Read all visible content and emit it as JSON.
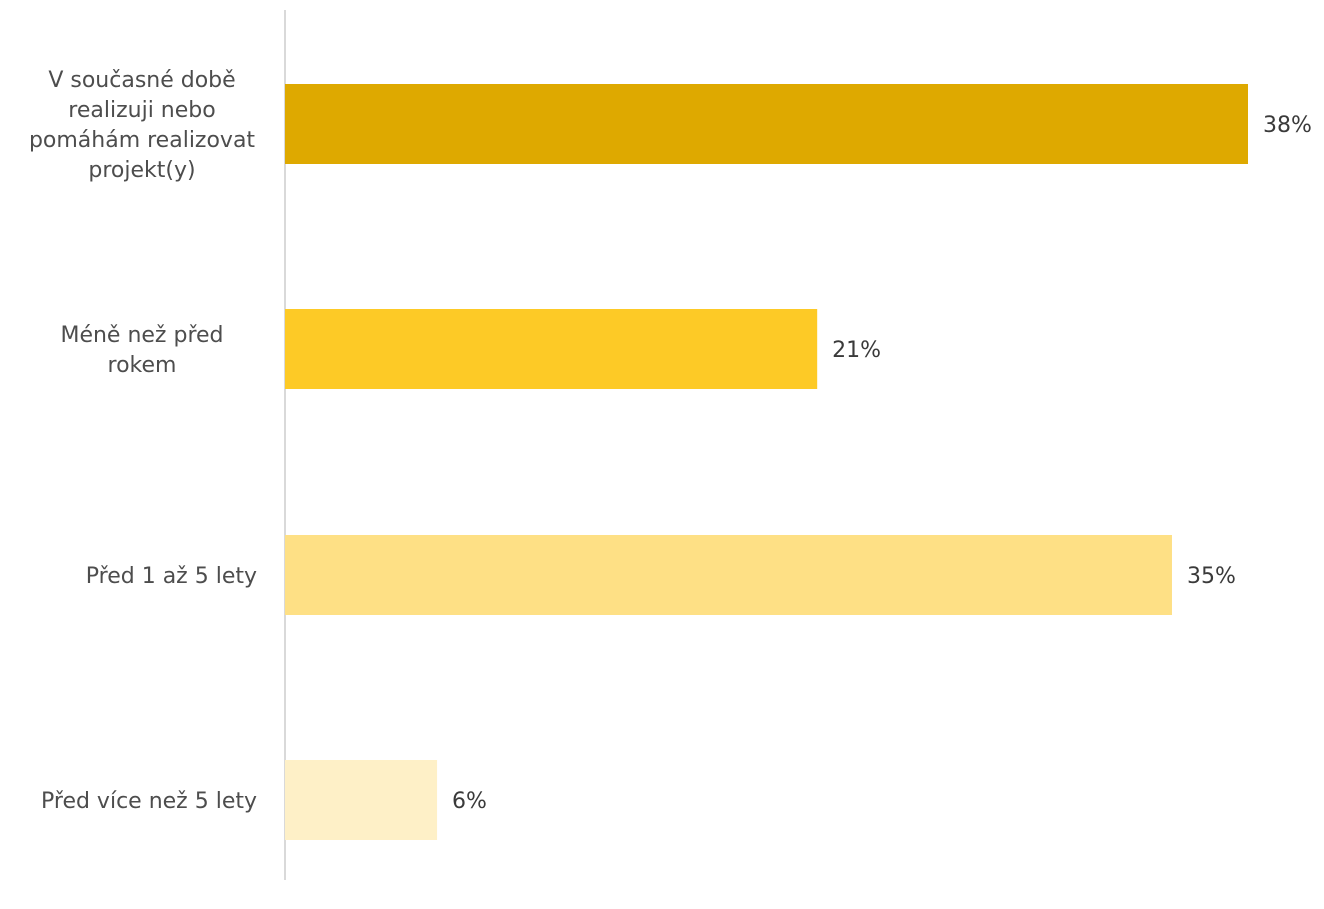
{
  "chart_data": {
    "type": "bar",
    "orientation": "horizontal",
    "categories": [
      "V současné době realizuji nebo pomáhám realizovat projekt(y)",
      "Méně než před rokem",
      "Před 1 až 5 lety",
      "Před více než 5 lety"
    ],
    "category_lines": [
      [
        "V současné době",
        "realizuji nebo",
        "pomáhám realizovat",
        "projekt(y)"
      ],
      [
        "Méně než před",
        "rokem"
      ],
      [
        "Před 1 až 5 lety"
      ],
      [
        "Před více než 5 lety"
      ]
    ],
    "values": [
      38,
      21,
      35,
      6
    ],
    "value_labels": [
      "38%",
      "21%",
      "35%",
      "6%"
    ],
    "colors": [
      "#dea900",
      "#fdca26",
      "#fee085",
      "#fef0c7"
    ],
    "xlim": [
      0,
      38
    ],
    "grid": false,
    "legend": "none",
    "axis_line_color": "#d9d9d9"
  }
}
